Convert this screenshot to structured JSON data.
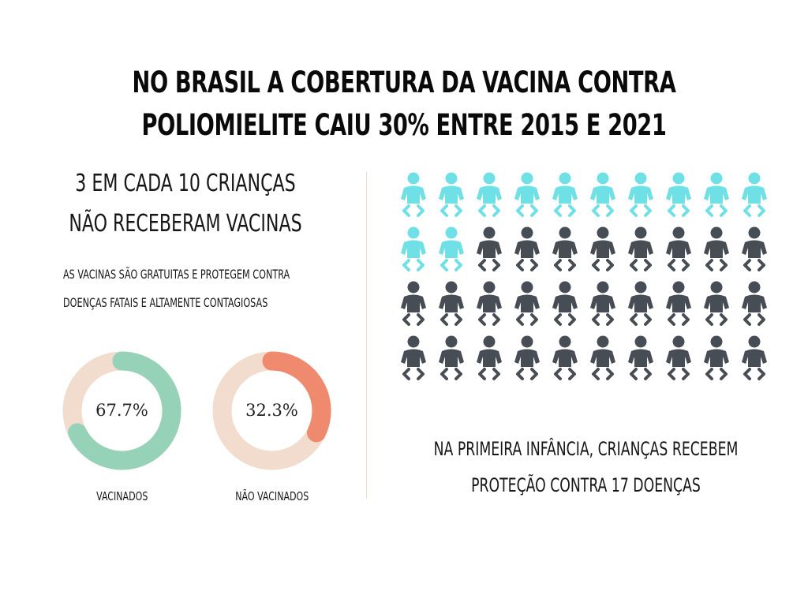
{
  "title_lines": [
    "NO BRASIL A COBERTURA DA VACINA CONTRA",
    "POLIOMIELITE CAIU  30% ENTRE 2015 E 2021"
  ],
  "headline_lines": [
    "3 EM CADA 10 CRIANÇAS",
    "NÃO RECEBERAM VACINAS"
  ],
  "sub_lines": [
    "AS VACINAS SÃO GRATUITAS E PROTEGEM CONTRA",
    "DOENÇAS FATAIS E ALTAMENTE CONTAGIOSAS"
  ],
  "caption_lines": [
    "NA PRIMEIRA INFÂNCIA, CRIANÇAS RECEBEM",
    "PROTEÇÃO CONTRA 17 DOENÇAS"
  ],
  "colors": {
    "track": "#f2dccd",
    "vaccinated": "#96d2b8",
    "not_vaccinated": "#ef8a6e",
    "baby_highlight": "#6fe0e6",
    "baby_base": "#474d55",
    "divider": "#f0d8cc"
  },
  "chart_data": [
    {
      "type": "pie",
      "variant": "donut",
      "label": "VACINADOS",
      "value": 67.7,
      "value_text": "67.7%",
      "color": "#96d2b8"
    },
    {
      "type": "pie",
      "variant": "donut",
      "label": "NÃO VACINADOS",
      "value": 32.3,
      "value_text": "32.3%",
      "color": "#ef8a6e"
    },
    {
      "type": "pictogram",
      "icon": "baby-icon",
      "total": 40,
      "highlighted": 12,
      "highlight_color": "#6fe0e6",
      "base_color": "#474d55"
    }
  ]
}
